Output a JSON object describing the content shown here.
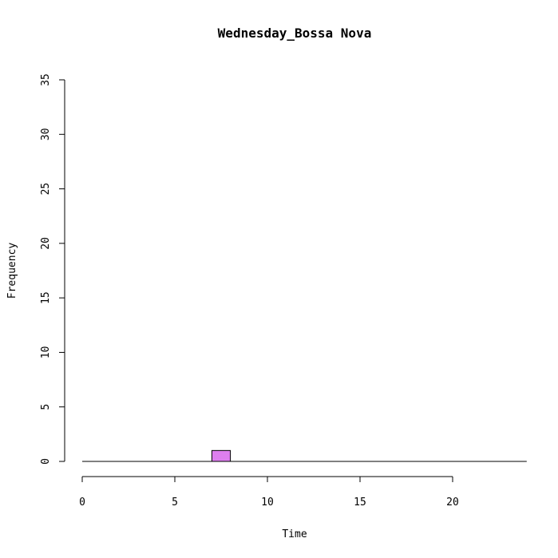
{
  "chart_data": {
    "type": "bar",
    "title": "Wednesday_Bossa Nova",
    "xlabel": "Time",
    "ylabel": "Frequency",
    "xlim": [
      0,
      24
    ],
    "ylim": [
      0,
      35
    ],
    "x_ticks": [
      0,
      5,
      10,
      15,
      20
    ],
    "y_ticks": [
      0,
      5,
      10,
      15,
      20,
      25,
      30,
      35
    ],
    "bin_width": 1,
    "bins_start": [
      0,
      1,
      2,
      3,
      4,
      5,
      6,
      7,
      8,
      9,
      10,
      11,
      12,
      13,
      14,
      15,
      16,
      17,
      18,
      19,
      20,
      21,
      22,
      23
    ],
    "values": [
      0,
      0,
      0,
      0,
      0,
      0,
      0,
      1,
      0,
      0,
      0,
      0,
      0,
      0,
      0,
      0,
      0,
      0,
      0,
      0,
      0,
      0,
      0,
      0
    ],
    "bar_color": "#DD7FEE",
    "grid": false
  }
}
